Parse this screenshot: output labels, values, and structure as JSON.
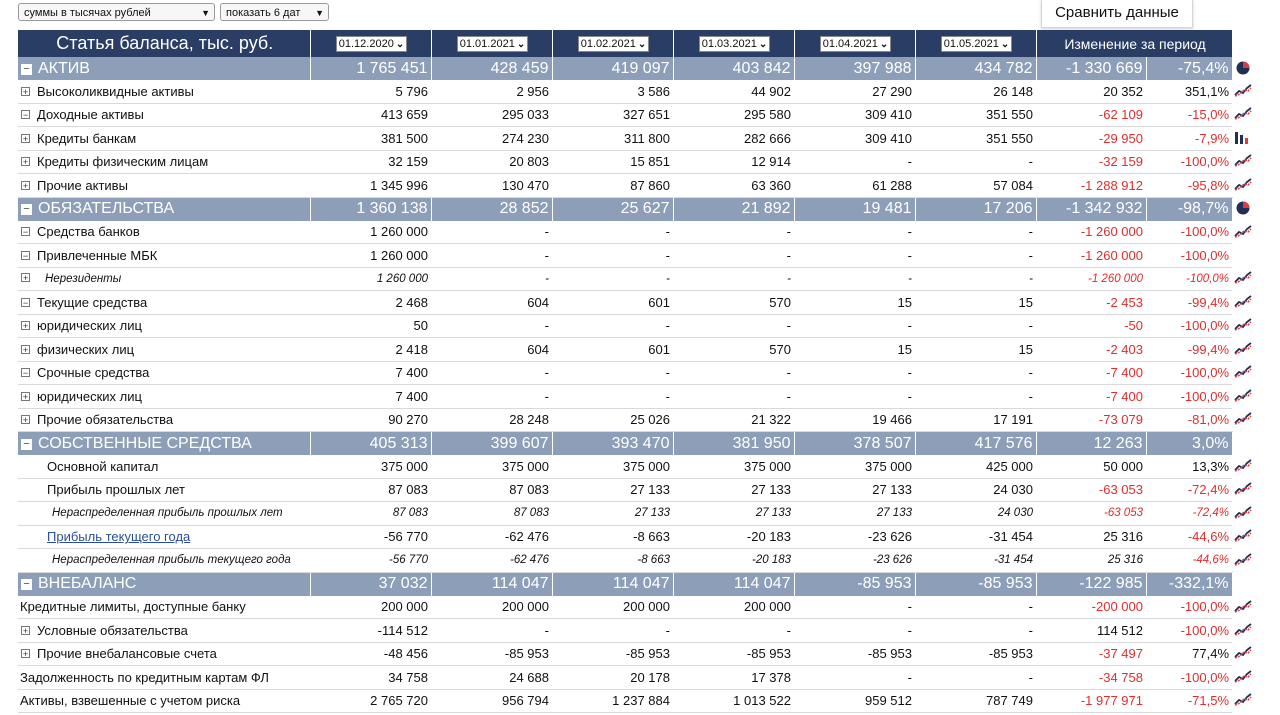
{
  "filters": {
    "units": "суммы в тысячах рублей",
    "dates": "показать 6 дат"
  },
  "compare_button": "Сравнить данные",
  "header": {
    "title": "Статья баланса, тыс. руб.",
    "dates": [
      "01.12.2020",
      "01.01.2021",
      "01.02.2021",
      "01.03.2021",
      "01.04.2021",
      "01.05.2021"
    ],
    "change": "Изменение за период"
  },
  "rows": [
    {
      "type": "sec",
      "toggle": "⊟",
      "label": "АКТИВ",
      "vals": [
        "1 765 451",
        "428 459",
        "419 097",
        "403 842",
        "397 988",
        "434 782"
      ],
      "chg": "-1 330 669",
      "pct": "-75,4%",
      "icon": "pie"
    },
    {
      "type": "row",
      "toggle": "⊞",
      "indent": 0,
      "label": "Высоколиквидные активы",
      "vals": [
        "5 796",
        "2 956",
        "3 586",
        "44 902",
        "27 290",
        "26 148"
      ],
      "chg": "20 352",
      "pct": "351,1%",
      "icon": "trend"
    },
    {
      "type": "row",
      "toggle": "⊟",
      "indent": 0,
      "label": "Доходные активы",
      "vals": [
        "413 659",
        "295 033",
        "327 651",
        "295 580",
        "309 410",
        "351 550"
      ],
      "chg": "-62 109",
      "pct": "-15,0%",
      "icon": "trend"
    },
    {
      "type": "row",
      "toggle": "⊞",
      "indent": 1,
      "label": "Кредиты банкам",
      "vals": [
        "381 500",
        "274 230",
        "311 800",
        "282 666",
        "309 410",
        "351 550"
      ],
      "chg": "-29 950",
      "pct": "-7,9%",
      "icon": "bar"
    },
    {
      "type": "row",
      "toggle": "⊞",
      "indent": 1,
      "label": "Кредиты физическим лицам",
      "vals": [
        "32 159",
        "20 803",
        "15 851",
        "12 914",
        "-",
        "-"
      ],
      "chg": "-32 159",
      "pct": "-100,0%",
      "icon": "trend"
    },
    {
      "type": "row",
      "toggle": "⊞",
      "indent": 0,
      "label": "Прочие активы",
      "vals": [
        "1 345 996",
        "130 470",
        "87 860",
        "63 360",
        "61 288",
        "57 084"
      ],
      "chg": "-1 288 912",
      "pct": "-95,8%",
      "icon": "trend"
    },
    {
      "type": "sec",
      "toggle": "⊟",
      "label": "ОБЯЗАТЕЛЬСТВА",
      "vals": [
        "1 360 138",
        "28 852",
        "25 627",
        "21 892",
        "19 481",
        "17 206"
      ],
      "chg": "-1 342 932",
      "pct": "-98,7%",
      "icon": "pie"
    },
    {
      "type": "row",
      "toggle": "⊟",
      "indent": 0,
      "label": "Средства банков",
      "vals": [
        "1 260 000",
        "-",
        "-",
        "-",
        "-",
        "-"
      ],
      "chg": "-1 260 000",
      "pct": "-100,0%",
      "icon": "trend"
    },
    {
      "type": "row",
      "toggle": "⊟",
      "indent": 1,
      "label": "Привлеченные МБК",
      "vals": [
        "1 260 000",
        "-",
        "-",
        "-",
        "-",
        "-"
      ],
      "chg": "-1 260 000",
      "pct": "-100,0%",
      "icon": ""
    },
    {
      "type": "row",
      "toggle": "⊞",
      "indent": 2,
      "italic": true,
      "label": "Нерезиденты",
      "vals": [
        "1 260 000",
        "-",
        "-",
        "-",
        "-",
        "-"
      ],
      "chg": "-1 260 000",
      "pct": "-100,0%",
      "icon": "trend"
    },
    {
      "type": "row",
      "toggle": "⊟",
      "indent": 0,
      "label": "Текущие средства",
      "vals": [
        "2 468",
        "604",
        "601",
        "570",
        "15",
        "15"
      ],
      "chg": "-2 453",
      "pct": "-99,4%",
      "icon": "trend"
    },
    {
      "type": "row",
      "toggle": "⊞",
      "indent": 1,
      "label": "юридических лиц",
      "vals": [
        "50",
        "-",
        "-",
        "-",
        "-",
        "-"
      ],
      "chg": "-50",
      "pct": "-100,0%",
      "icon": "trend"
    },
    {
      "type": "row",
      "toggle": "⊞",
      "indent": 1,
      "label": "физических лиц",
      "vals": [
        "2 418",
        "604",
        "601",
        "570",
        "15",
        "15"
      ],
      "chg": "-2 403",
      "pct": "-99,4%",
      "icon": "trend"
    },
    {
      "type": "row",
      "toggle": "⊟",
      "indent": 0,
      "label": "Срочные средства",
      "vals": [
        "7 400",
        "-",
        "-",
        "-",
        "-",
        "-"
      ],
      "chg": "-7 400",
      "pct": "-100,0%",
      "icon": "trend"
    },
    {
      "type": "row",
      "toggle": "⊞",
      "indent": 1,
      "label": "юридических лиц",
      "vals": [
        "7 400",
        "-",
        "-",
        "-",
        "-",
        "-"
      ],
      "chg": "-7 400",
      "pct": "-100,0%",
      "icon": "trend"
    },
    {
      "type": "row",
      "toggle": "⊞",
      "indent": 0,
      "label": "Прочие обязательства",
      "vals": [
        "90 270",
        "28 248",
        "25 026",
        "21 322",
        "19 466",
        "17 191"
      ],
      "chg": "-73 079",
      "pct": "-81,0%",
      "icon": "trend"
    },
    {
      "type": "sec",
      "toggle": "⊟",
      "label": "СОБСТВЕННЫЕ СРЕДСТВА",
      "vals": [
        "405 313",
        "399 607",
        "393 470",
        "381 950",
        "378 507",
        "417 576"
      ],
      "chg": "12 263",
      "pct": "3,0%",
      "icon": ""
    },
    {
      "type": "row",
      "toggle": "",
      "indent": 1,
      "label": "Основной капитал",
      "vals": [
        "375 000",
        "375 000",
        "375 000",
        "375 000",
        "375 000",
        "425 000"
      ],
      "chg": "50 000",
      "pct": "13,3%",
      "icon": "trend"
    },
    {
      "type": "row",
      "toggle": "",
      "indent": 1,
      "label": "Прибыль прошлых лет",
      "vals": [
        "87 083",
        "87 083",
        "27 133",
        "27 133",
        "27 133",
        "24 030"
      ],
      "chg": "-63 053",
      "pct": "-72,4%",
      "icon": "trend"
    },
    {
      "type": "row",
      "toggle": "",
      "indent": 2,
      "italic": true,
      "label": "Нераспределенная прибыль прошлых лет",
      "vals": [
        "87 083",
        "87 083",
        "27 133",
        "27 133",
        "27 133",
        "24 030"
      ],
      "chg": "-63 053",
      "pct": "-72,4%",
      "icon": "trend"
    },
    {
      "type": "row",
      "toggle": "",
      "indent": 1,
      "link": true,
      "label": "Прибыль текущего года",
      "vals": [
        "-56 770",
        "-62 476",
        "-8 663",
        "-20 183",
        "-23 626",
        "-31 454"
      ],
      "chg": "25 316",
      "pct": "-44,6%",
      "icon": "trend"
    },
    {
      "type": "row",
      "toggle": "",
      "indent": 2,
      "italic": true,
      "label": "Нераспределенная прибыль текущего года",
      "vals": [
        "-56 770",
        "-62 476",
        "-8 663",
        "-20 183",
        "-23 626",
        "-31 454"
      ],
      "chg": "25 316",
      "pct": "-44,6%",
      "icon": "trend"
    },
    {
      "type": "sec",
      "toggle": "⊟",
      "label": "ВНЕБАЛАНС",
      "vals": [
        "37 032",
        "114 047",
        "114 047",
        "114 047",
        "-85 953",
        "-85 953"
      ],
      "chg": "-122 985",
      "pct": "-332,1%",
      "icon": ""
    },
    {
      "type": "row",
      "toggle": "",
      "indent": -1,
      "label": "Кредитные лимиты, доступные банку",
      "vals": [
        "200 000",
        "200 000",
        "200 000",
        "200 000",
        "-",
        "-"
      ],
      "chg": "-200 000",
      "pct": "-100,0%",
      "icon": "trend"
    },
    {
      "type": "row",
      "toggle": "⊞",
      "indent": 0,
      "label": "Условные обязательства",
      "vals": [
        "-114 512",
        "-",
        "-",
        "-",
        "-",
        "-"
      ],
      "chg": "114 512",
      "pct": "-100,0%",
      "icon": "trend"
    },
    {
      "type": "row",
      "toggle": "⊞",
      "indent": 0,
      "label": "Прочие внебалансовые счета",
      "vals": [
        "-48 456",
        "-85 953",
        "-85 953",
        "-85 953",
        "-85 953",
        "-85 953"
      ],
      "chg": "-37 497",
      "pct": "77,4%",
      "icon": "trend"
    },
    {
      "type": "row",
      "toggle": "",
      "indent": -1,
      "label": "Задолженность по кредитным картам ФЛ",
      "vals": [
        "34 758",
        "24 688",
        "20 178",
        "17 378",
        "-",
        "-"
      ],
      "chg": "-34 758",
      "pct": "-100,0%",
      "icon": "trend"
    },
    {
      "type": "row",
      "toggle": "",
      "indent": -1,
      "label": "Активы, взвешенные с учетом риска",
      "vals": [
        "2 765 720",
        "956 794",
        "1 237 884",
        "1 013 522",
        "959 512",
        "787 749"
      ],
      "chg": "-1 977 971",
      "pct": "-71,5%",
      "icon": "trend"
    }
  ]
}
